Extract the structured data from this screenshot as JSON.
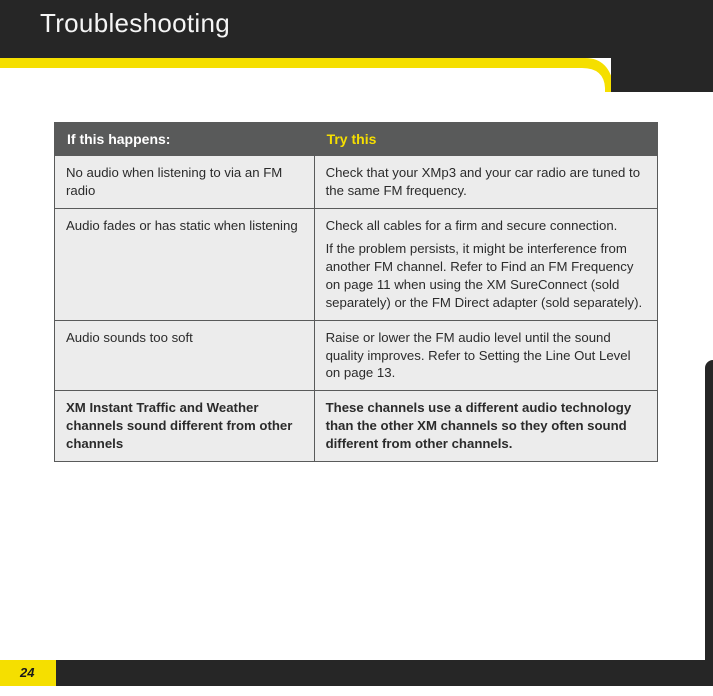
{
  "page_title": "Troubleshooting",
  "page_number": "24",
  "colors": {
    "header_bg": "#262626",
    "header_text": "#f5f5f5",
    "accent_yellow": "#f5df00",
    "table_header_bg": "#595a5a",
    "table_header_left_text": "#ffffff",
    "table_header_right_text": "#f6df00",
    "cell_bg": "#ececec",
    "cell_border": "#595a5a"
  },
  "table": {
    "header_left": "If this happens:",
    "header_right": "Try this",
    "rows": [
      {
        "left_bold": false,
        "left": "No audio when listening to via an FM radio",
        "right": [
          "Check that your XMp3  and your car radio are tuned to the same FM frequency."
        ]
      },
      {
        "left_bold": false,
        "left": "Audio fades or has static when listening",
        "right": [
          "Check all cables for a firm and secure connection.",
          "If the problem persists, it might be interference from another FM channel. Refer to Find an FM Frequency on page 11 when using the XM SureConnect (sold separately) or the FM Direct adapter (sold separately)."
        ]
      },
      {
        "left_bold": false,
        "left": "Audio sounds too soft",
        "right": [
          "Raise or lower the FM audio level until the sound quality improves. Refer to Setting the Line Out Level on page 13."
        ]
      },
      {
        "left_bold": true,
        "left": "XM Instant Traffic and Weather channels sound different from other channels",
        "right": [
          "These channels use a different audio technology than the other XM channels so they often sound different from other channels."
        ]
      }
    ]
  }
}
